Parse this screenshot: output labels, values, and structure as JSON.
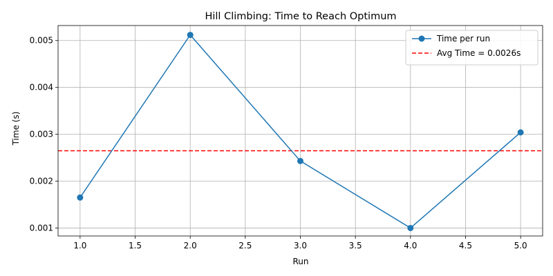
{
  "chart_data": {
    "type": "line",
    "title": "Hill Climbing: Time to Reach Optimum",
    "xlabel": "Run",
    "ylabel": "Time (s)",
    "xlim": [
      0.8,
      5.2
    ],
    "ylim": [
      0.00083,
      0.00532
    ],
    "xticks": [
      1.0,
      1.5,
      2.0,
      2.5,
      3.0,
      3.5,
      4.0,
      4.5,
      5.0
    ],
    "xtick_labels": [
      "1.0",
      "1.5",
      "2.0",
      "2.5",
      "3.0",
      "3.5",
      "4.0",
      "4.5",
      "5.0"
    ],
    "yticks": [
      0.001,
      0.002,
      0.003,
      0.004,
      0.005
    ],
    "ytick_labels": [
      "0.001",
      "0.002",
      "0.003",
      "0.004",
      "0.005"
    ],
    "grid": true,
    "legend_position": "top-right",
    "series": [
      {
        "name": "Time per run",
        "x": [
          1,
          2,
          3,
          4,
          5
        ],
        "values": [
          0.00165,
          0.00512,
          0.00243,
          0.001,
          0.00304
        ],
        "color": "#1f77b4",
        "style": "solid",
        "marker": "circle"
      }
    ],
    "reference_lines": [
      {
        "name": "Avg Time = 0.0026s",
        "y": 0.002648,
        "color": "#ff0000",
        "style": "dashed"
      }
    ]
  }
}
